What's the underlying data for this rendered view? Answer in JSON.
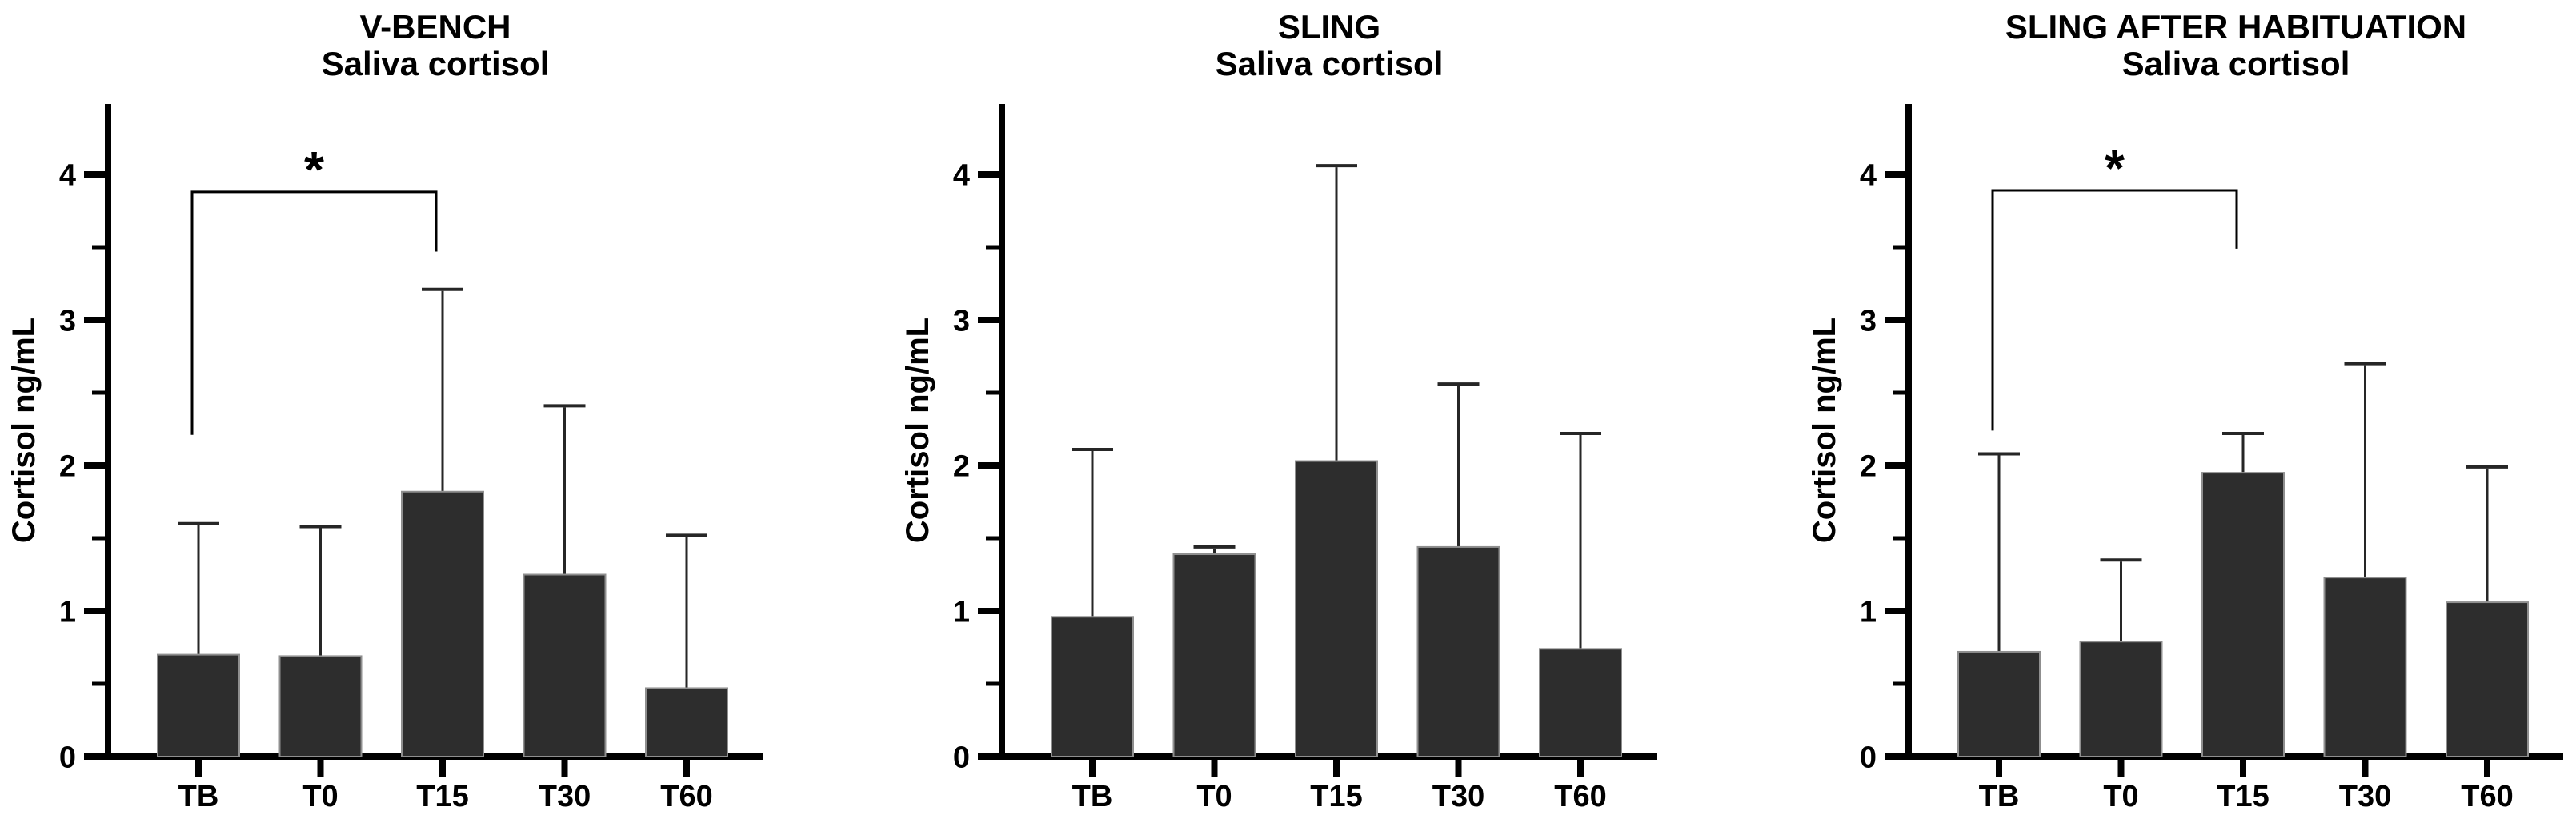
{
  "figure": {
    "background": "#ffffff",
    "kind": "three-panel bar chart figure"
  },
  "colors": {
    "bar_fill": "#2d2d2d",
    "bar_border": "#8f8f8f",
    "error_bar": "#262626",
    "axis": "#000000",
    "text": "#000000",
    "background": "#ffffff"
  },
  "chart_data": [
    {
      "type": "bar",
      "title": "V-BENCH",
      "subtitle": "Saliva cortisol",
      "ylabel": "Cortisol ng/mL",
      "xlabel": "",
      "categories": [
        "TB",
        "T0",
        "T15",
        "T30",
        "T60"
      ],
      "values": [
        0.7,
        0.69,
        1.82,
        1.25,
        0.47
      ],
      "error_upper_top": [
        1.6,
        1.58,
        3.21,
        2.41,
        1.52
      ],
      "yticks": [
        0,
        1,
        2,
        3,
        4
      ],
      "minor_yticks": [
        0.5,
        1.5,
        2.5,
        3.5
      ],
      "ylim": [
        0,
        4.5
      ],
      "grid": false,
      "legend": null,
      "significance": {
        "from": "TB",
        "to": "T15",
        "label": "*",
        "bar_value": 3.88,
        "from_leg_bottom": 2.21,
        "to_leg_bottom": 3.47
      }
    },
    {
      "type": "bar",
      "title": "SLING",
      "subtitle": "Saliva cortisol",
      "ylabel": "Cortisol ng/mL",
      "xlabel": "",
      "categories": [
        "TB",
        "T0",
        "T15",
        "T30",
        "T60"
      ],
      "values": [
        0.96,
        1.39,
        2.03,
        1.44,
        0.74
      ],
      "error_upper_top": [
        2.11,
        1.44,
        4.06,
        2.56,
        2.22
      ],
      "yticks": [
        0,
        1,
        2,
        3,
        4
      ],
      "minor_yticks": [
        0.5,
        1.5,
        2.5,
        3.5
      ],
      "ylim": [
        0,
        4.5
      ],
      "grid": false,
      "legend": null,
      "significance": null
    },
    {
      "type": "bar",
      "title": "SLING AFTER HABITUATION",
      "subtitle": "Saliva cortisol",
      "ylabel": "Cortisol ng/mL",
      "xlabel": "",
      "categories": [
        "TB",
        "T0",
        "T15",
        "T30",
        "T60"
      ],
      "values": [
        0.72,
        0.79,
        1.95,
        1.23,
        1.06
      ],
      "error_upper_top": [
        2.08,
        1.35,
        2.22,
        2.7,
        1.99
      ],
      "yticks": [
        0,
        1,
        2,
        3,
        4
      ],
      "minor_yticks": [
        0.5,
        1.5,
        2.5,
        3.5
      ],
      "ylim": [
        0,
        4.5
      ],
      "grid": false,
      "legend": null,
      "significance": {
        "from": "TB",
        "to": "T15",
        "label": "*",
        "bar_value": 3.89,
        "from_leg_bottom": 2.24,
        "to_leg_bottom": 3.49
      }
    }
  ]
}
